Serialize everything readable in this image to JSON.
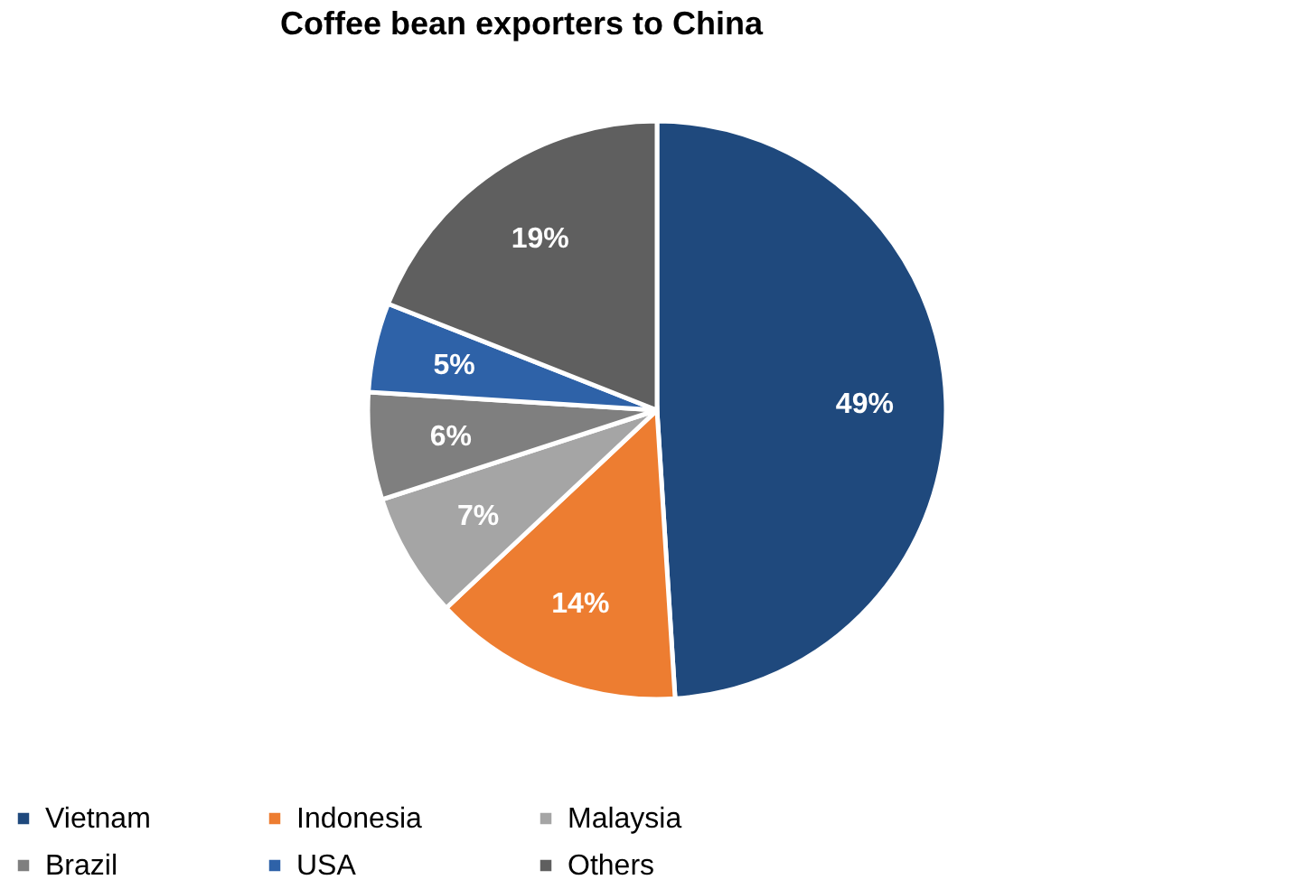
{
  "chart_data": {
    "type": "pie",
    "title": "Coffee bean exporters to China",
    "categories": [
      "Vietnam",
      "Indonesia",
      "Malaysia",
      "Brazil",
      "USA",
      "Others"
    ],
    "values": [
      49,
      14,
      7,
      6,
      5,
      19
    ],
    "colors": [
      "#1f497d",
      "#ed7d31",
      "#a5a5a5",
      "#7f7f7f",
      "#2e62a8",
      "#5f5f5f"
    ],
    "value_labels": [
      "49%",
      "14%",
      "7%",
      "6%",
      "5%",
      "19%"
    ],
    "legend": "bottom"
  }
}
